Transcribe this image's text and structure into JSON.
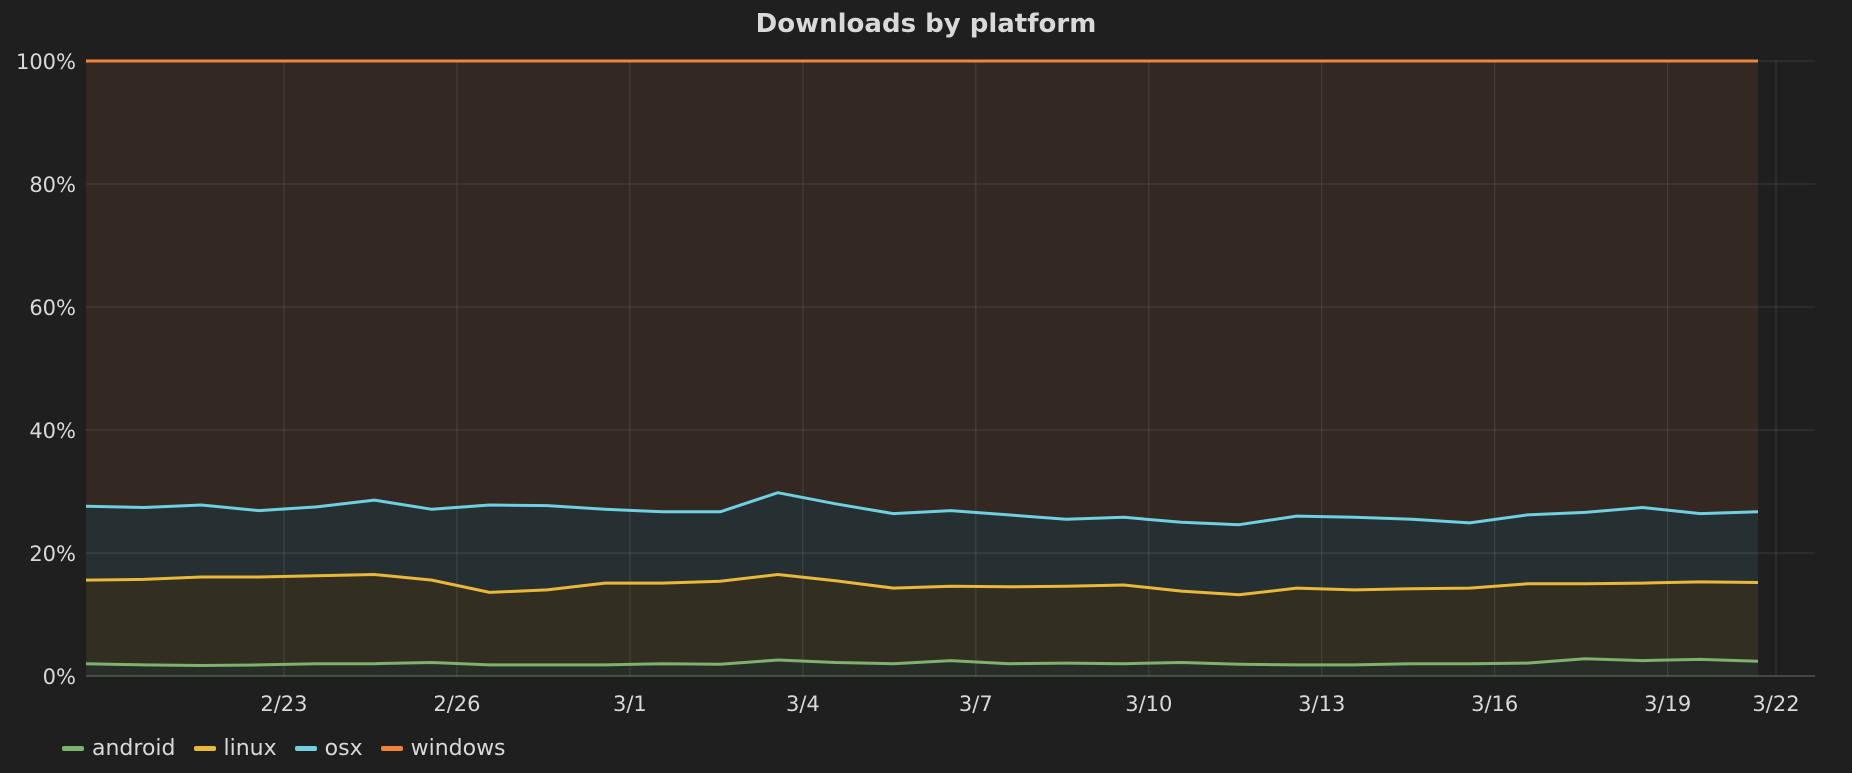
{
  "panel": {
    "title": "Downloads by platform"
  },
  "chart_data": {
    "type": "area",
    "stacked": true,
    "title": "Downloads by platform",
    "xlabel": "",
    "ylabel": "",
    "ylim": [
      0,
      100
    ],
    "y_tick_labels": [
      "0%",
      "20%",
      "40%",
      "60%",
      "80%",
      "100%"
    ],
    "y_ticks": [
      0,
      20,
      40,
      60,
      80,
      100
    ],
    "x_tick_labels": [
      "2/23",
      "2/26",
      "3/1",
      "3/4",
      "3/7",
      "3/10",
      "3/13",
      "3/16",
      "3/19",
      "3/22"
    ],
    "grid": true,
    "legend_position": "bottom-left",
    "x": [
      "2/20",
      "2/21",
      "2/22",
      "2/23",
      "2/24",
      "2/25",
      "2/26",
      "2/27",
      "2/28",
      "3/1",
      "3/2",
      "3/3",
      "3/4",
      "3/5",
      "3/6",
      "3/7",
      "3/8",
      "3/9",
      "3/10",
      "3/11",
      "3/12",
      "3/13",
      "3/14",
      "3/15",
      "3/16",
      "3/17",
      "3/18",
      "3/19",
      "3/20",
      "3/21"
    ],
    "series": [
      {
        "name": "android",
        "color": "#7eb26d",
        "cumulative": [
          2.0,
          1.8,
          1.7,
          1.8,
          2.0,
          2.0,
          2.2,
          1.8,
          1.8,
          1.8,
          2.0,
          1.9,
          2.6,
          2.2,
          2.0,
          2.5,
          2.0,
          2.1,
          2.0,
          2.2,
          1.9,
          1.8,
          1.8,
          2.0,
          2.0,
          2.1,
          2.8,
          2.5,
          2.7,
          2.4
        ]
      },
      {
        "name": "linux",
        "color": "#eab839",
        "cumulative": [
          15.6,
          15.7,
          16.1,
          16.1,
          16.3,
          16.5,
          15.6,
          13.6,
          14.0,
          15.1,
          15.1,
          15.4,
          16.5,
          15.5,
          14.3,
          14.6,
          14.5,
          14.6,
          14.8,
          13.8,
          13.2,
          14.3,
          14.0,
          14.2,
          14.3,
          15.0,
          15.0,
          15.1,
          15.3,
          15.2
        ]
      },
      {
        "name": "osx",
        "color": "#6ed0e0",
        "cumulative": [
          27.6,
          27.4,
          27.8,
          26.9,
          27.5,
          28.6,
          27.1,
          27.8,
          27.7,
          27.1,
          26.7,
          26.7,
          29.8,
          28.0,
          26.4,
          26.9,
          26.2,
          25.5,
          25.8,
          25.0,
          24.6,
          26.0,
          25.8,
          25.5,
          24.9,
          26.2,
          26.6,
          27.4,
          26.4,
          26.7
        ]
      },
      {
        "name": "windows",
        "color": "#ef843c",
        "cumulative": [
          100,
          100,
          100,
          100,
          100,
          100,
          100,
          100,
          100,
          100,
          100,
          100,
          100,
          100,
          100,
          100,
          100,
          100,
          100,
          100,
          100,
          100,
          100,
          100,
          100,
          100,
          100,
          100,
          100,
          100
        ]
      }
    ]
  }
}
